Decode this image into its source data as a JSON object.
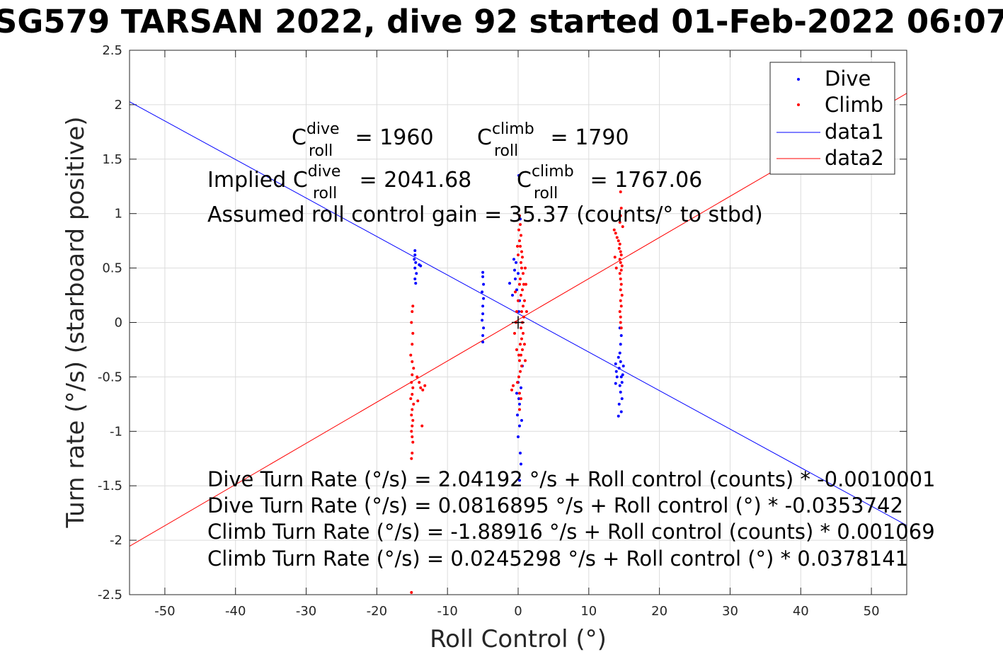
{
  "chart_data": {
    "type": "scatter",
    "title": "SG579 TARSAN 2022, dive 92 started 01-Feb-2022 06:07",
    "xlabel": "Roll Control (°)",
    "ylabel": "Turn rate (°/s) (starboard positive)",
    "xlim": [
      -55,
      55
    ],
    "ylim": [
      -2.5,
      2.5
    ],
    "xticks": [
      -50,
      -40,
      -30,
      -20,
      -10,
      0,
      10,
      20,
      30,
      40,
      50
    ],
    "yticks": [
      2.5,
      2,
      1.5,
      1,
      0.5,
      0,
      -0.5,
      -1,
      -1.5,
      -2,
      -2.5
    ],
    "grid": true,
    "legend_position": "top-right",
    "legend": [
      "Dive",
      "Climb",
      "data1",
      "data2"
    ],
    "colors": {
      "dive": "#0000ff",
      "climb": "#ff0000",
      "data1": "#0000ff",
      "data2": "#ff0000",
      "marker": "#000000"
    },
    "series": [
      {
        "name": "Dive",
        "kind": "points",
        "points": [
          [
            -14.6,
            0.66
          ],
          [
            -14.6,
            0.62
          ],
          [
            -14.7,
            0.58
          ],
          [
            -14.5,
            0.55
          ],
          [
            -14.6,
            0.5
          ],
          [
            -14.4,
            0.45
          ],
          [
            -14.6,
            0.4
          ],
          [
            -14.5,
            0.36
          ],
          [
            -14.0,
            0.53
          ],
          [
            -13.8,
            0.52
          ],
          [
            -5.0,
            0.46
          ],
          [
            -5.0,
            0.42
          ],
          [
            -4.9,
            0.35
          ],
          [
            -5.1,
            0.28
          ],
          [
            -4.9,
            0.22
          ],
          [
            -5.0,
            0.15
          ],
          [
            -5.0,
            0.08
          ],
          [
            -5.1,
            0.02
          ],
          [
            -4.9,
            -0.05
          ],
          [
            -5.0,
            -0.12
          ],
          [
            -5.0,
            -0.18
          ],
          [
            -0.6,
            0.58
          ],
          [
            -0.5,
            0.48
          ],
          [
            -0.4,
            0.4
          ],
          [
            -0.2,
            0.3
          ],
          [
            -1.2,
            0.36
          ],
          [
            -0.8,
            0.25
          ],
          [
            -0.3,
            0.55
          ],
          [
            0.0,
            0.45
          ],
          [
            0.2,
            0.2
          ],
          [
            0.1,
            0.1
          ],
          [
            0.0,
            -0.55
          ],
          [
            0.1,
            -0.7
          ],
          [
            -0.1,
            -0.85
          ],
          [
            0.2,
            -0.95
          ],
          [
            0.0,
            -1.05
          ],
          [
            0.3,
            -1.2
          ],
          [
            0.4,
            -1.3
          ],
          [
            0.2,
            -1.45
          ],
          [
            0.1,
            1.35
          ],
          [
            0.3,
            0.95
          ],
          [
            0.4,
            -0.6
          ],
          [
            0.2,
            -0.75
          ],
          [
            -0.2,
            -0.65
          ],
          [
            0.5,
            -0.9
          ],
          [
            0.6,
            -0.4
          ],
          [
            13.8,
            -0.38
          ],
          [
            13.9,
            -0.45
          ],
          [
            14.0,
            -0.5
          ],
          [
            13.8,
            -0.56
          ],
          [
            14.2,
            -0.32
          ],
          [
            14.4,
            -0.28
          ],
          [
            14.5,
            -0.36
          ],
          [
            14.3,
            -0.42
          ],
          [
            14.6,
            -0.5
          ],
          [
            14.4,
            -0.58
          ],
          [
            14.5,
            -0.64
          ],
          [
            14.7,
            -0.7
          ],
          [
            14.3,
            -0.75
          ],
          [
            14.6,
            -0.82
          ],
          [
            14.2,
            -0.86
          ],
          [
            14.8,
            -0.48
          ],
          [
            14.9,
            -0.4
          ],
          [
            14.5,
            -0.2
          ],
          [
            14.6,
            -0.12
          ],
          [
            14.4,
            -0.05
          ],
          [
            14.7,
            -0.55
          ]
        ]
      },
      {
        "name": "Climb",
        "kind": "points",
        "points": [
          [
            -15.0,
            -0.48
          ],
          [
            -15.1,
            -0.55
          ],
          [
            -14.9,
            -0.6
          ],
          [
            -15.0,
            -0.66
          ],
          [
            -15.2,
            -0.7
          ],
          [
            -14.8,
            -0.75
          ],
          [
            -15.0,
            -0.8
          ],
          [
            -15.1,
            -0.85
          ],
          [
            -14.9,
            -0.9
          ],
          [
            -15.0,
            -0.95
          ],
          [
            -15.1,
            -1.0
          ],
          [
            -15.0,
            -1.05
          ],
          [
            -14.9,
            -1.1
          ],
          [
            -15.0,
            -1.2
          ],
          [
            -15.1,
            -1.25
          ],
          [
            -14.8,
            -0.42
          ],
          [
            -15.0,
            -0.36
          ],
          [
            -15.2,
            -0.3
          ],
          [
            -15.0,
            -0.2
          ],
          [
            -14.9,
            -0.1
          ],
          [
            -15.1,
            0.0
          ],
          [
            -15.0,
            0.1
          ],
          [
            -14.9,
            0.15
          ],
          [
            -14.0,
            -0.55
          ],
          [
            -13.8,
            -0.6
          ],
          [
            -13.5,
            -0.62
          ],
          [
            -13.2,
            -0.58
          ],
          [
            -13.6,
            -0.95
          ],
          [
            -14.2,
            -0.72
          ],
          [
            -14.3,
            -0.5
          ],
          [
            -15.1,
            -2.48
          ],
          [
            0.2,
            0.98
          ],
          [
            0.3,
            0.9
          ],
          [
            0.1,
            0.85
          ],
          [
            0.4,
            0.8
          ],
          [
            0.2,
            0.75
          ],
          [
            0.3,
            0.7
          ],
          [
            0.5,
            0.65
          ],
          [
            0.6,
            0.6
          ],
          [
            0.4,
            0.55
          ],
          [
            0.5,
            0.5
          ],
          [
            0.7,
            0.45
          ],
          [
            0.3,
            0.4
          ],
          [
            0.8,
            0.35
          ],
          [
            0.6,
            0.3
          ],
          [
            0.4,
            0.25
          ],
          [
            0.9,
            0.2
          ],
          [
            0.7,
            0.15
          ],
          [
            0.5,
            0.1
          ],
          [
            0.8,
            0.05
          ],
          [
            0.6,
            0.0
          ],
          [
            0.4,
            -0.05
          ],
          [
            0.7,
            -0.1
          ],
          [
            0.5,
            -0.15
          ],
          [
            0.3,
            -0.2
          ],
          [
            0.6,
            -0.25
          ],
          [
            0.4,
            -0.3
          ],
          [
            0.2,
            -0.35
          ],
          [
            0.5,
            -0.4
          ],
          [
            0.3,
            -0.45
          ],
          [
            0.1,
            -0.5
          ],
          [
            -0.1,
            -0.55
          ],
          [
            0.0,
            0.2
          ],
          [
            -0.2,
            0.1
          ],
          [
            -0.3,
            0.0
          ],
          [
            -0.5,
            -0.1
          ],
          [
            -0.7,
            -0.58
          ],
          [
            -0.9,
            -0.62
          ],
          [
            0.2,
            -0.65
          ],
          [
            0.4,
            -0.7
          ],
          [
            0.1,
            -0.3
          ],
          [
            1.0,
            0.5
          ],
          [
            1.1,
            0.35
          ],
          [
            1.2,
            0.1
          ],
          [
            0.9,
            -0.2
          ],
          [
            1.0,
            -0.35
          ],
          [
            0.2,
            0.35
          ],
          [
            0.0,
            0.62
          ],
          [
            -0.1,
            0.7
          ],
          [
            0.2,
            -0.8
          ],
          [
            -0.4,
            0.28
          ],
          [
            -0.2,
            -0.25
          ],
          [
            13.6,
            0.85
          ],
          [
            13.8,
            0.82
          ],
          [
            14.0,
            0.78
          ],
          [
            14.2,
            0.75
          ],
          [
            14.4,
            0.72
          ],
          [
            14.3,
            0.68
          ],
          [
            14.5,
            0.65
          ],
          [
            14.6,
            0.62
          ],
          [
            14.4,
            0.58
          ],
          [
            14.5,
            0.55
          ],
          [
            14.7,
            0.52
          ],
          [
            14.6,
            0.48
          ],
          [
            14.4,
            0.45
          ],
          [
            14.5,
            0.4
          ],
          [
            14.6,
            0.35
          ],
          [
            14.5,
            0.3
          ],
          [
            14.7,
            0.25
          ],
          [
            14.5,
            0.2
          ],
          [
            14.6,
            0.15
          ],
          [
            14.4,
            0.1
          ],
          [
            14.5,
            0.05
          ],
          [
            14.5,
            0.0
          ],
          [
            14.6,
            -0.05
          ],
          [
            14.5,
            1.2
          ],
          [
            14.6,
            1.05
          ],
          [
            14.5,
            0.98
          ],
          [
            14.4,
            0.92
          ],
          [
            13.9,
            0.5
          ],
          [
            13.7,
            0.6
          ],
          [
            14.8,
            0.88
          ]
        ]
      },
      {
        "name": "data1",
        "kind": "line",
        "intercept": 0.0816895,
        "slope": -0.0353742
      },
      {
        "name": "data2",
        "kind": "line",
        "intercept": 0.0245298,
        "slope": 0.0378141
      }
    ],
    "center_marker": [
      0,
      0
    ],
    "annotations": {
      "c_dive_base": "C",
      "c_dive_sup": "dive",
      "c_dive_sub": "roll",
      "c_dive_value": " = 1960",
      "c_climb_base": "C",
      "c_climb_sup": "climb",
      "c_climb_sub": "roll",
      "c_climb_value": " = 1790",
      "implied_prefix": "Implied C",
      "implied_dive_sup": "dive",
      "implied_dive_sub": "roll",
      "implied_dive_value": " = 2041.68",
      "implied_climb_base": "C",
      "implied_climb_sup": "climb",
      "implied_climb_sub": "roll",
      "implied_climb_value": " = 1767.06",
      "gain": "Assumed roll control gain = 35.37 (counts/° to stbd)",
      "eq1": "Dive Turn Rate (°/s) = 2.04192 °/s + Roll control (counts) * -0.0010001",
      "eq2": "Dive Turn Rate (°/s) = 0.0816895 °/s + Roll control (°) * -0.0353742",
      "eq3": "Climb Turn Rate (°/s) = -1.88916 °/s + Roll control (counts) * 0.001069",
      "eq4": "Climb Turn Rate (°/s) = 0.0245298 °/s + Roll control (°) * 0.0378141"
    }
  }
}
